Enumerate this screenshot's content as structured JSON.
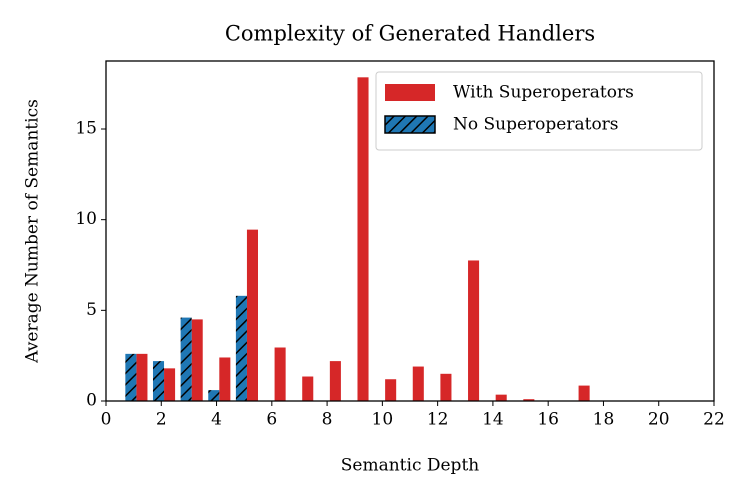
{
  "chart_data": {
    "type": "bar",
    "title": "Complexity of Generated Handlers",
    "x_label": "Semantic Depth",
    "y_label": "Average Number of Semantics",
    "x": [
      1,
      2,
      3,
      4,
      5,
      6,
      7,
      8,
      9,
      10,
      11,
      12,
      13,
      14,
      15,
      16,
      17
    ],
    "series": [
      {
        "name": "With Superoperators",
        "color": "#d62728",
        "values": [
          2.6,
          1.8,
          4.5,
          2.4,
          9.45,
          2.95,
          1.35,
          2.2,
          17.85,
          1.2,
          1.9,
          1.5,
          7.75,
          0.35,
          0.1,
          0,
          0.85
        ]
      },
      {
        "name": "No Superoperators",
        "color": "#1f77b4",
        "hatch": "//",
        "values": [
          2.6,
          2.2,
          4.6,
          0.6,
          5.8,
          null,
          null,
          null,
          null,
          null,
          null,
          null,
          null,
          null,
          null,
          null,
          null
        ]
      }
    ],
    "xlim": [
      0,
      22
    ],
    "xticks": [
      0,
      2,
      4,
      6,
      8,
      10,
      12,
      14,
      16,
      18,
      20,
      22
    ],
    "ylim": [
      0,
      18.75
    ],
    "yticks": [
      0,
      5,
      10,
      15
    ],
    "legend": "upper right"
  }
}
